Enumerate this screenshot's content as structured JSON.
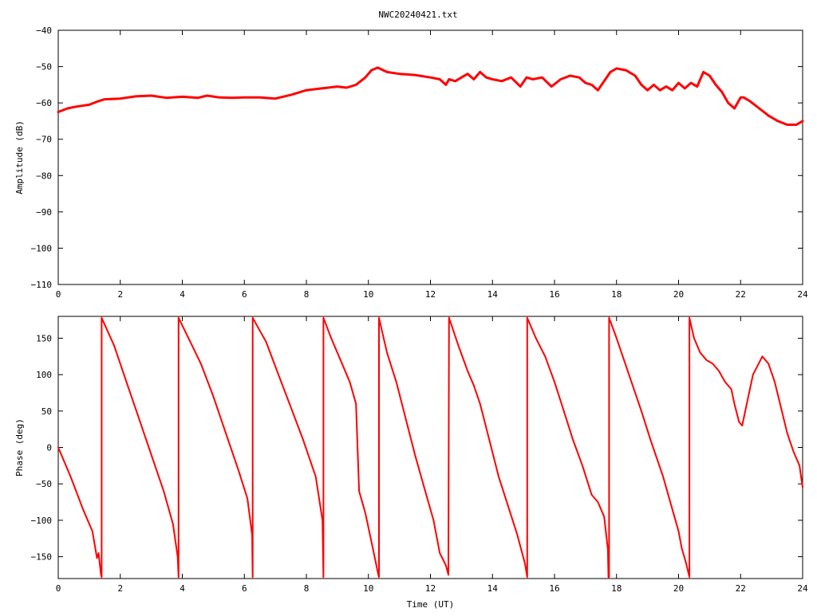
{
  "figure_title": "NWC20240421.txt",
  "chart_data": [
    {
      "type": "line",
      "title": "",
      "xlabel": "",
      "ylabel": "Amplitude (dB)",
      "xlim": [
        0,
        24
      ],
      "ylim": [
        -110,
        -40
      ],
      "xticks": [
        0,
        2,
        4,
        6,
        8,
        10,
        12,
        14,
        16,
        18,
        20,
        22,
        24
      ],
      "xtick_labels": [
        "0",
        "2",
        "4",
        "6",
        "8",
        "10",
        "12",
        "14",
        "16",
        "18",
        "20",
        "22",
        "24"
      ],
      "yticks": [
        -110,
        -100,
        -90,
        -80,
        -70,
        -60,
        -50,
        -40
      ],
      "ytick_labels": [
        "−110",
        "−100",
        "−90",
        "−80",
        "−70",
        "−60",
        "−50",
        "−40"
      ],
      "grid": false,
      "series": [
        {
          "color": "#ff0000",
          "x": [
            0,
            0.3,
            0.6,
            1.0,
            1.3,
            1.5,
            2.0,
            2.5,
            3.0,
            3.5,
            4.0,
            4.5,
            4.8,
            5.2,
            5.6,
            6.0,
            6.5,
            7.0,
            7.5,
            8.0,
            8.5,
            9.0,
            9.3,
            9.6,
            9.9,
            10.1,
            10.3,
            10.6,
            11.0,
            11.5,
            12.0,
            12.3,
            12.5,
            12.6,
            12.8,
            13.0,
            13.2,
            13.4,
            13.6,
            13.8,
            14.0,
            14.3,
            14.6,
            14.9,
            15.1,
            15.3,
            15.6,
            15.9,
            16.2,
            16.5,
            16.8,
            17.0,
            17.2,
            17.4,
            17.6,
            17.8,
            18.0,
            18.3,
            18.6,
            18.8,
            19.0,
            19.2,
            19.4,
            19.6,
            19.8,
            20.0,
            20.2,
            20.4,
            20.6,
            20.8,
            21.0,
            21.2,
            21.4,
            21.6,
            21.8,
            22.0,
            22.1,
            22.3,
            22.6,
            22.9,
            23.2,
            23.5,
            23.8,
            24.0
          ],
          "y": [
            -62.5,
            -61.5,
            -61.0,
            -60.5,
            -59.5,
            -59.0,
            -58.8,
            -58.2,
            -58.0,
            -58.6,
            -58.3,
            -58.6,
            -58.0,
            -58.5,
            -58.6,
            -58.5,
            -58.5,
            -58.8,
            -57.8,
            -56.5,
            -56.0,
            -55.5,
            -55.8,
            -55.0,
            -53.0,
            -51.0,
            -50.3,
            -51.5,
            -52.0,
            -52.3,
            -53.0,
            -53.5,
            -55.0,
            -53.5,
            -54.0,
            -53.0,
            -52.0,
            -53.5,
            -51.5,
            -53.0,
            -53.5,
            -54.0,
            -53.0,
            -55.5,
            -53.0,
            -53.5,
            -53.0,
            -55.5,
            -53.5,
            -52.5,
            -53.0,
            -54.5,
            -55.0,
            -56.5,
            -54.0,
            -51.5,
            -50.5,
            -51.0,
            -52.5,
            -55.0,
            -56.5,
            -55.0,
            -56.5,
            -55.5,
            -56.5,
            -54.5,
            -56.0,
            -54.5,
            -55.5,
            -51.5,
            -52.5,
            -55.0,
            -57.0,
            -60.0,
            -61.5,
            -58.5,
            -58.5,
            -59.5,
            -61.5,
            -63.5,
            -65.0,
            -66.0,
            -66.0,
            -65.0
          ]
        }
      ]
    },
    {
      "type": "line",
      "title": "",
      "xlabel": "Time (UT)",
      "ylabel": "Phase (deg)",
      "xlim": [
        0,
        24
      ],
      "ylim": [
        -180,
        180
      ],
      "xticks": [
        0,
        2,
        4,
        6,
        8,
        10,
        12,
        14,
        16,
        18,
        20,
        22,
        24
      ],
      "xtick_labels": [
        "0",
        "2",
        "4",
        "6",
        "8",
        "10",
        "12",
        "14",
        "16",
        "18",
        "20",
        "22",
        "24"
      ],
      "yticks": [
        -150,
        -100,
        -50,
        0,
        50,
        100,
        150
      ],
      "ytick_labels": [
        "−150",
        "−100",
        "−50",
        "0",
        "50",
        "100",
        "150"
      ],
      "grid": false,
      "series": [
        {
          "color": "#ff0000",
          "x": [
            0,
            0.4,
            0.8,
            1.1,
            1.2,
            1.25,
            1.3,
            1.38,
            1.4,
            1.4,
            1.8,
            2.2,
            2.6,
            3.0,
            3.4,
            3.7,
            3.85,
            3.88,
            3.88,
            4.2,
            4.6,
            5.0,
            5.4,
            5.8,
            6.1,
            6.25,
            6.27,
            6.27,
            6.7,
            7.1,
            7.5,
            7.9,
            8.3,
            8.52,
            8.55,
            8.55,
            8.8,
            9.1,
            9.4,
            9.6,
            9.7,
            9.9,
            10.15,
            10.32,
            10.34,
            10.34,
            10.6,
            10.9,
            11.2,
            11.5,
            11.8,
            12.1,
            12.3,
            12.5,
            12.58,
            12.6,
            12.6,
            12.9,
            13.2,
            13.4,
            13.6,
            13.9,
            14.2,
            14.5,
            14.8,
            15.05,
            15.12,
            15.12,
            15.4,
            15.7,
            16.0,
            16.3,
            16.6,
            16.9,
            17.2,
            17.4,
            17.6,
            17.72,
            17.74,
            17.76,
            17.76,
            18.0,
            18.4,
            18.8,
            19.1,
            19.5,
            19.8,
            20.0,
            20.1,
            20.25,
            20.35,
            20.35,
            20.5,
            20.7,
            20.9,
            21.1,
            21.3,
            21.5,
            21.7,
            21.8,
            21.95,
            22.05,
            22.2,
            22.4,
            22.7,
            22.9,
            23.1,
            23.3,
            23.5,
            23.7,
            23.9,
            24.0
          ],
          "y": [
            0,
            -40,
            -85,
            -115,
            -140,
            -152,
            -145,
            -175,
            -178,
            178,
            140,
            90,
            40,
            -10,
            -60,
            -105,
            -150,
            -178,
            178,
            150,
            115,
            70,
            20,
            -30,
            -70,
            -120,
            -178,
            178,
            145,
            100,
            55,
            10,
            -40,
            -100,
            -178,
            178,
            150,
            120,
            90,
            60,
            -60,
            -90,
            -140,
            -175,
            -178,
            178,
            130,
            90,
            40,
            -10,
            -55,
            -100,
            -145,
            -162,
            -175,
            178,
            178,
            140,
            105,
            85,
            60,
            10,
            -40,
            -80,
            -120,
            -160,
            -178,
            178,
            150,
            125,
            90,
            50,
            10,
            -25,
            -65,
            -75,
            -95,
            -140,
            -178,
            -178,
            178,
            150,
            100,
            50,
            10,
            -40,
            -85,
            -115,
            -138,
            -160,
            -178,
            178,
            150,
            130,
            120,
            115,
            105,
            90,
            80,
            60,
            35,
            30,
            60,
            100,
            125,
            115,
            90,
            55,
            20,
            -5,
            -25,
            -55
          ]
        }
      ]
    }
  ]
}
